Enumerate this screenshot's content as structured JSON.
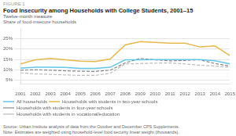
{
  "chart_data": {
    "type": "line",
    "figure_label": "FIGURE 1",
    "title": "Food Insecurity among Households with College Students, 2001–15",
    "subtitle": "Twelve-month measure",
    "ylabel": "Share of food-insecure households",
    "annotations": [
      "Source: Urban Institute analysis of data from the October and December CPS Supplements.",
      "Note: Estimates are weighted using household-level food security linear weight (thousands)."
    ],
    "x": [
      2001,
      2002,
      2003,
      2004,
      2005,
      2006,
      2007,
      2008,
      2009,
      2010,
      2011,
      2012,
      2013,
      2014,
      2015
    ],
    "series": [
      {
        "name": "All households",
        "color": "#62c6e8",
        "line_style": "solid",
        "values": [
          0.108,
          0.112,
          0.112,
          0.111,
          0.107,
          0.107,
          0.112,
          0.148,
          0.148,
          0.149,
          0.149,
          0.149,
          0.149,
          0.143,
          0.128
        ]
      },
      {
        "name": "Households with students in two-year schools",
        "color": "#e8b84b",
        "line_style": "solid",
        "values": [
          0.128,
          0.148,
          0.155,
          0.148,
          0.142,
          0.14,
          0.152,
          0.22,
          0.236,
          0.232,
          0.228,
          0.228,
          0.21,
          0.215,
          0.168
        ]
      },
      {
        "name": "Households with students in four-year schools",
        "color": "#888888",
        "line_style": "dashed",
        "values": [
          0.098,
          0.1,
          0.098,
          0.095,
          0.093,
          0.092,
          0.098,
          0.133,
          0.155,
          0.148,
          0.143,
          0.145,
          0.148,
          0.13,
          0.118
        ]
      },
      {
        "name": "Households with students in vocational/education",
        "color": "#bbbbbb",
        "line_style": "dashed",
        "values": [
          0.085,
          0.08,
          0.078,
          0.075,
          0.073,
          0.073,
          0.083,
          0.128,
          0.13,
          0.132,
          0.133,
          0.128,
          0.122,
          0.118,
          0.112
        ]
      }
    ],
    "xlim": [
      2001,
      2015
    ],
    "xticks": [
      2001,
      2002,
      2003,
      2004,
      2005,
      2006,
      2007,
      2008,
      2009,
      2010,
      2011,
      2012,
      2013,
      2014,
      2015
    ],
    "ylim": [
      0.03,
      0.295
    ],
    "yticks": [
      {
        "value": 0.05,
        "label": "5%"
      },
      {
        "value": 0.1,
        "label": "10%"
      },
      {
        "value": 0.15,
        "label": "15%"
      },
      {
        "value": 0.2,
        "label": "20%"
      },
      {
        "value": 0.25,
        "label": "25%"
      }
    ],
    "grid": true,
    "legend": "bottom"
  }
}
